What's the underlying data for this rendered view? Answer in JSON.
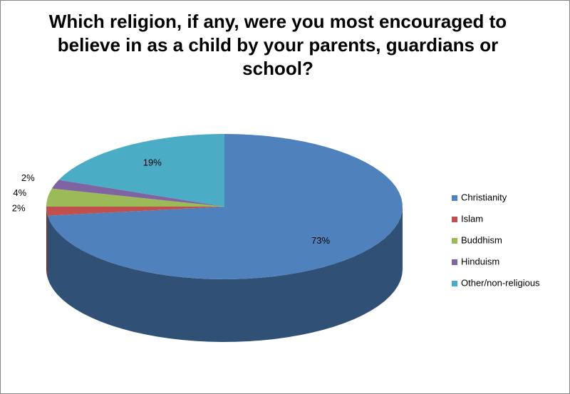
{
  "chart_data": {
    "type": "pie3d",
    "title": "Which religion, if any, were you most encouraged to believe in as a child by your parents, guardians or school?",
    "categories": [
      "Christianity",
      "Islam",
      "Buddhism",
      "Hinduism",
      "Other/non-religious"
    ],
    "values": [
      73,
      2,
      4,
      2,
      19
    ],
    "value_labels": [
      "73%",
      "2%",
      "4%",
      "2%",
      "19%"
    ],
    "colors": [
      "#4f81bd",
      "#c0504d",
      "#9bbb59",
      "#8064a2",
      "#4bacc6"
    ],
    "legend": "right"
  }
}
